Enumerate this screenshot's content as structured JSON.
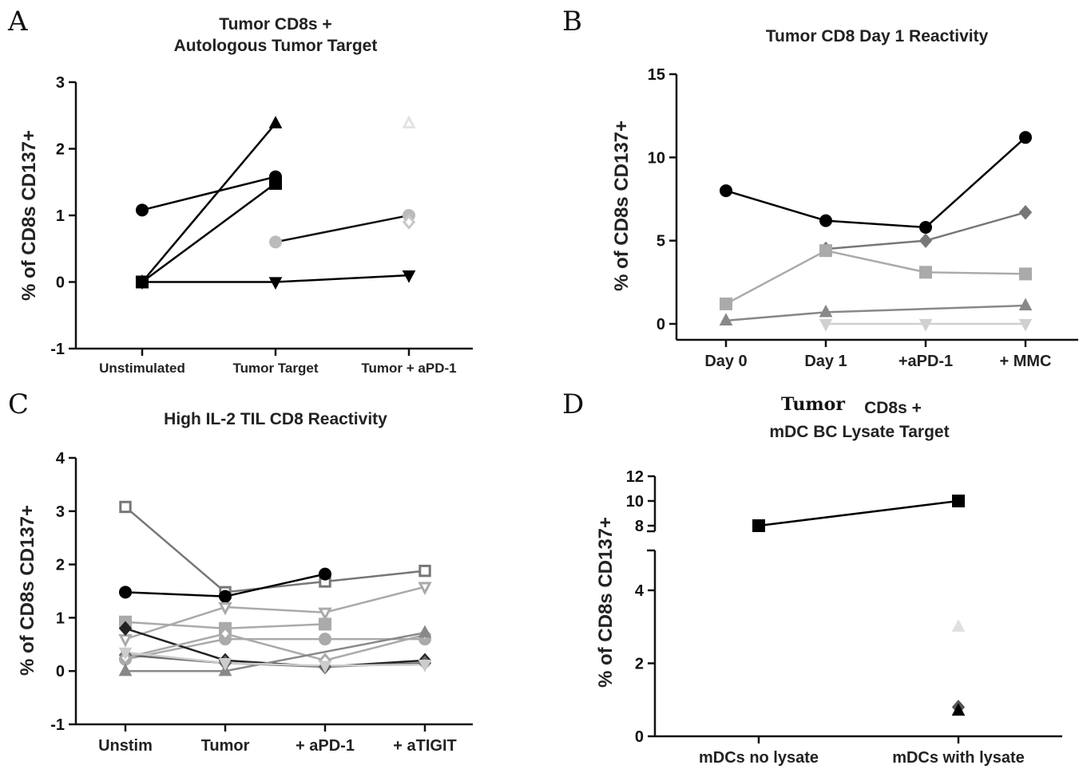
{
  "chart_data": [
    {
      "panel": "A",
      "type": "line",
      "title_lines": [
        "Tumor CD8s +",
        "Autologous Tumor Target"
      ],
      "ylabel": "% of CD8s CD137+",
      "categories": [
        "Unstimulated",
        "Tumor Target",
        "Tumor + aPD-1"
      ],
      "ylim": [
        -1,
        3
      ],
      "yticks": [
        "-1",
        "0",
        "1",
        "2",
        "3"
      ],
      "grid": false,
      "series": [
        {
          "values": [
            1.08,
            1.58,
            null
          ],
          "marker": "circle",
          "color": "#000000",
          "fill": true
        },
        {
          "values": [
            0,
            2.38,
            null
          ],
          "marker": "triangle-up",
          "color": "#000000",
          "fill": true
        },
        {
          "values": [
            0,
            1.48,
            null
          ],
          "marker": "square",
          "color": "#000000",
          "fill": true
        },
        {
          "values": [
            0,
            0,
            0.1
          ],
          "marker": "triangle-down",
          "color": "#000000",
          "fill": true
        },
        {
          "values": [
            null,
            0.6,
            1.0
          ],
          "marker": "circle",
          "color": "#bbbbbb",
          "fill": true,
          "line": "#111111"
        },
        {
          "values": [
            null,
            null,
            0.9
          ],
          "marker": "diamond",
          "color": "#c8c8c8",
          "fill": false
        },
        {
          "values": [
            null,
            null,
            2.38
          ],
          "marker": "triangle-up",
          "color": "#e3e3e3",
          "fill": false
        }
      ]
    },
    {
      "panel": "B",
      "type": "line",
      "title": "Tumor CD8 Day 1 Reactivity",
      "ylabel": "% of CD8s CD137+",
      "categories": [
        "Day 0",
        "Day 1",
        "+aPD-1",
        "+ MMC"
      ],
      "ylim": [
        -1,
        15
      ],
      "yticks": [
        "0",
        "5",
        "10",
        "15"
      ],
      "grid": false,
      "series": [
        {
          "values": [
            8.0,
            6.2,
            5.8,
            11.2
          ],
          "marker": "circle",
          "color": "#000000",
          "fill": true
        },
        {
          "values": [
            null,
            4.5,
            5.0,
            6.7
          ],
          "marker": "diamond",
          "color": "#777777",
          "fill": true
        },
        {
          "values": [
            1.2,
            4.4,
            3.1,
            3.0
          ],
          "marker": "square",
          "color": "#aaaaaa",
          "fill": true
        },
        {
          "values": [
            0.2,
            0.7,
            null,
            1.1
          ],
          "marker": "triangle-up",
          "color": "#888888",
          "fill": true
        },
        {
          "values": [
            null,
            0.0,
            0.0,
            0.0
          ],
          "marker": "triangle-down",
          "color": "#d0d0d0",
          "fill": true
        }
      ]
    },
    {
      "panel": "C",
      "type": "line",
      "title": "High IL-2 TIL CD8 Reactivity",
      "ylabel": "% of CD8s CD137+",
      "categories": [
        "Unstim",
        "Tumor",
        "+ aPD-1",
        "+ aTIGIT"
      ],
      "ylim": [
        -1,
        4
      ],
      "yticks": [
        "-1",
        "0",
        "1",
        "2",
        "3",
        "4"
      ],
      "grid": false,
      "series": [
        {
          "values": [
            3.08,
            1.48,
            1.68,
            1.88
          ],
          "marker": "square",
          "color": "#777777",
          "fill": false
        },
        {
          "values": [
            1.48,
            1.4,
            1.82,
            null
          ],
          "marker": "circle",
          "color": "#000000",
          "fill": true
        },
        {
          "values": [
            0.6,
            1.2,
            1.1,
            1.58
          ],
          "marker": "triangle-down",
          "color": "#aaaaaa",
          "fill": false
        },
        {
          "values": [
            0.92,
            0.8,
            0.88,
            null
          ],
          "marker": "square",
          "color": "#aaaaaa",
          "fill": true
        },
        {
          "values": [
            0.22,
            0.6,
            0.6,
            0.6
          ],
          "marker": "circle",
          "color": "#aaaaaa",
          "fill": true
        },
        {
          "values": [
            0.8,
            0.2,
            0.08,
            0.2
          ],
          "marker": "diamond",
          "color": "#222222",
          "fill": true
        },
        {
          "values": [
            0.3,
            0.15,
            0.08,
            0.15
          ],
          "marker": "diamond",
          "color": "#666666",
          "fill": false
        },
        {
          "values": [
            0.25,
            0.7,
            0.2,
            0.68
          ],
          "marker": "diamond",
          "color": "#aaaaaa",
          "fill": false
        },
        {
          "values": [
            0.0,
            0.0,
            null,
            0.72
          ],
          "marker": "triangle-up",
          "color": "#888888",
          "fill": true
        },
        {
          "values": [
            0.35,
            0.15,
            0.1,
            0.12
          ],
          "marker": "triangle-down",
          "color": "#cccccc",
          "fill": true
        }
      ]
    },
    {
      "panel": "D",
      "type": "line",
      "title_lines": [
        "Tumor",
        "CD8s +",
        "mDC BC Lysate Target"
      ],
      "ylabel": "% of CD8s CD137+",
      "categories": [
        "mDCs no lysate",
        "mDCs with lysate"
      ],
      "y_axis_break": {
        "lower_range": [
          0,
          5
        ],
        "upper_range": [
          7.5,
          12.5
        ]
      },
      "yticks_lower": [
        "0",
        "2",
        "4"
      ],
      "yticks_upper": [
        "8",
        "10",
        "12"
      ],
      "grid": false,
      "series": [
        {
          "values": [
            8.0,
            10.0
          ],
          "marker": "square",
          "color": "#000000",
          "fill": true
        },
        {
          "values": [
            null,
            3.0
          ],
          "marker": "triangle-up",
          "color": "#e0e0e0",
          "fill": true
        },
        {
          "values": [
            null,
            0.8
          ],
          "marker": "diamond",
          "color": "#555555",
          "fill": true
        },
        {
          "values": [
            null,
            0.7
          ],
          "marker": "triangle-up",
          "color": "#000000",
          "fill": true
        }
      ]
    }
  ]
}
